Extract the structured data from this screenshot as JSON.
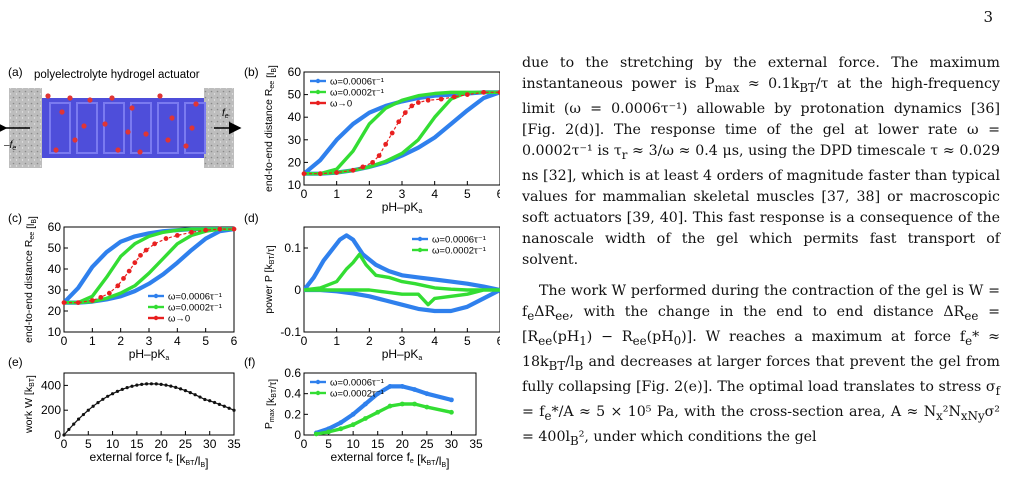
{
  "page_number": "3",
  "panels": {
    "a": {
      "label": "(a)",
      "title": "polyelectrolyte hydrogel actuator",
      "force_left": "–f",
      "force_right": "f",
      "force_sub": "e"
    },
    "b": {
      "label": "(b)"
    },
    "c": {
      "label": "(c)"
    },
    "d": {
      "label": "(d)"
    },
    "e": {
      "label": "(e)"
    },
    "f": {
      "label": "(f)"
    }
  },
  "chart_data": [
    {
      "id": "b",
      "type": "line",
      "ylabel": "end-to-end distance R_ee [l_B]",
      "xlabel": "pH–pK_a",
      "xlim": [
        0,
        6
      ],
      "ylim": [
        10,
        60
      ],
      "xticks": [
        0,
        1,
        2,
        3,
        4,
        5,
        6
      ],
      "yticks": [
        10,
        20,
        30,
        40,
        50,
        60
      ],
      "legend_position": "top-left",
      "series": [
        {
          "name": "ω=0.0006τ⁻¹",
          "color": "#2f80ed",
          "x": [
            0,
            0.5,
            1,
            1.5,
            2,
            2.5,
            3,
            3.5,
            4,
            4.5,
            5,
            5.5,
            6,
            6,
            5.5,
            5,
            4.5,
            4,
            3.5,
            3,
            2.5,
            2,
            1.5,
            1,
            0.5,
            0
          ],
          "y": [
            15,
            15,
            15.5,
            16.5,
            18,
            20,
            23,
            26.5,
            31,
            37,
            43,
            48.5,
            51,
            51,
            51,
            50.5,
            50,
            49.5,
            48.5,
            47,
            45,
            42,
            37,
            30,
            21,
            15
          ]
        },
        {
          "name": "ω=0.0002τ⁻¹",
          "color": "#33dd33",
          "x": [
            0,
            0.5,
            1,
            1.5,
            2,
            2.5,
            3,
            3.5,
            4,
            4.5,
            5,
            5.5,
            6,
            6,
            5.5,
            5,
            4.5,
            4,
            3.5,
            3,
            2.5,
            2,
            1.5,
            1,
            0.5,
            0
          ],
          "y": [
            15,
            15,
            15.5,
            16.5,
            18,
            20.5,
            24,
            30,
            40,
            48,
            51,
            51,
            51,
            51,
            51,
            51,
            51,
            50.5,
            49.5,
            47.5,
            44,
            37,
            25,
            17,
            15,
            15
          ]
        },
        {
          "name": "ω→0",
          "color": "#e82020",
          "dashed": true,
          "markers": true,
          "x": [
            0,
            0.5,
            1,
            1.5,
            1.8,
            2.1,
            2.3,
            2.5,
            2.7,
            2.9,
            3.1,
            3.3,
            3.5,
            3.8,
            4.2,
            4.6,
            5,
            5.5,
            6
          ],
          "y": [
            15,
            15,
            15.5,
            16.5,
            18,
            20,
            23,
            28,
            33,
            38,
            42,
            45,
            46.5,
            47.5,
            48,
            49,
            50,
            51,
            51
          ]
        }
      ]
    },
    {
      "id": "c",
      "type": "line",
      "ylabel": "end-to-end distance R_ee [l_B]",
      "xlabel": "pH–pK_a",
      "xlim": [
        0,
        6
      ],
      "ylim": [
        10,
        60
      ],
      "xticks": [
        0,
        1,
        2,
        3,
        4,
        5,
        6
      ],
      "yticks": [
        10,
        20,
        30,
        40,
        50,
        60
      ],
      "legend_position": "bottom-right",
      "series": [
        {
          "name": "ω=0.0006τ⁻¹",
          "color": "#2f80ed",
          "x": [
            0,
            0.5,
            1,
            1.5,
            2,
            2.5,
            3,
            3.5,
            4,
            4.5,
            5,
            5.5,
            6,
            6,
            5.5,
            5,
            4.5,
            4,
            3.5,
            3,
            2.5,
            2,
            1.5,
            1,
            0.5,
            0
          ],
          "y": [
            24,
            24,
            24.5,
            25.5,
            27,
            29.5,
            33,
            37.5,
            43,
            49,
            54.5,
            58,
            59,
            59,
            59,
            59,
            59,
            58.5,
            58,
            57,
            55.5,
            53,
            48,
            41,
            31,
            24
          ]
        },
        {
          "name": "ω=0.0002τ⁻¹",
          "color": "#33dd33",
          "x": [
            0,
            0.5,
            1,
            1.5,
            2,
            2.5,
            3,
            3.5,
            4,
            4.5,
            5,
            5.5,
            6,
            6,
            5.5,
            5,
            4.5,
            4,
            3.5,
            3,
            2.5,
            2,
            1.5,
            1,
            0.5,
            0
          ],
          "y": [
            24,
            24,
            24.5,
            26,
            28.5,
            32,
            38,
            45,
            52,
            56,
            58,
            59,
            59,
            59,
            59,
            59,
            59,
            58.5,
            57.5,
            55.5,
            52,
            46,
            36,
            27,
            24,
            24
          ]
        },
        {
          "name": "ω→0",
          "color": "#e82020",
          "dashed": true,
          "markers": true,
          "x": [
            0,
            0.5,
            1,
            1.3,
            1.6,
            1.9,
            2.1,
            2.3,
            2.5,
            2.7,
            2.9,
            3.2,
            3.6,
            4,
            4.5,
            5,
            5.5,
            6
          ],
          "y": [
            24,
            24,
            25,
            26.5,
            28.5,
            32,
            35.5,
            39,
            43,
            46.5,
            49,
            52,
            54.5,
            56,
            57.5,
            58.5,
            59,
            59
          ]
        }
      ]
    },
    {
      "id": "d",
      "type": "line",
      "ylabel": "power P [k_BT/τ]",
      "xlabel": "pH–pK_a",
      "xlim": [
        0,
        6
      ],
      "ylim": [
        -0.1,
        0.15
      ],
      "xticks": [
        0,
        1,
        2,
        3,
        4,
        5,
        6
      ],
      "yticks": [
        -0.1,
        0,
        0.1
      ],
      "legend_position": "top-right",
      "series": [
        {
          "name": "ω=0.0006τ⁻¹",
          "color": "#2f80ed",
          "x": [
            0,
            0.3,
            0.6,
            0.9,
            1.1,
            1.3,
            1.5,
            1.8,
            2.2,
            2.6,
            3,
            3.5,
            4,
            4.5,
            5,
            5.5,
            6,
            5.5,
            5,
            4.5,
            4,
            3.5,
            3,
            2.5,
            2,
            1.5,
            1,
            0.5,
            0
          ],
          "y": [
            0,
            0.03,
            0.07,
            0.1,
            0.12,
            0.13,
            0.12,
            0.085,
            0.06,
            0.045,
            0.035,
            0.03,
            0.025,
            0.02,
            0.015,
            0.008,
            0,
            -0.02,
            -0.04,
            -0.05,
            -0.05,
            -0.045,
            -0.035,
            -0.025,
            -0.015,
            -0.008,
            -0.003,
            0,
            0
          ]
        },
        {
          "name": "ω=0.0002τ⁻¹",
          "color": "#33dd33",
          "x": [
            0,
            0.5,
            1,
            1.3,
            1.5,
            1.7,
            1.9,
            2.2,
            2.6,
            3,
            3.4,
            3.7,
            4,
            4.5,
            5,
            5.5,
            6,
            5.5,
            5,
            4.5,
            4,
            3.8,
            3.5,
            3,
            2.5,
            2,
            1.5,
            1,
            0.5,
            0
          ],
          "y": [
            0,
            0.005,
            0.02,
            0.05,
            0.065,
            0.085,
            0.06,
            0.035,
            0.03,
            0.02,
            0.015,
            0.01,
            0.005,
            0.002,
            0,
            0,
            0,
            0,
            -0.01,
            -0.015,
            -0.02,
            -0.035,
            -0.01,
            -0.01,
            -0.005,
            0,
            0,
            0,
            0,
            0
          ]
        }
      ]
    },
    {
      "id": "e",
      "type": "line",
      "ylabel": "work W [k_BT]",
      "xlabel": "external force f_e [k_BT/l_B]",
      "xlim": [
        0,
        35
      ],
      "ylim": [
        0,
        500
      ],
      "xticks": [
        0,
        5,
        10,
        15,
        20,
        25,
        30,
        35
      ],
      "yticks": [
        0,
        200,
        400
      ],
      "legend_position": "none",
      "series": [
        {
          "name": "",
          "color": "#111111",
          "markers": true,
          "x": [
            0,
            1,
            2,
            3,
            4,
            5,
            6,
            7,
            8,
            9,
            10,
            11,
            12,
            13,
            14,
            15,
            16,
            17,
            18,
            19,
            20,
            21,
            22,
            23,
            24,
            25,
            26,
            27,
            28,
            29,
            30,
            31,
            32,
            33,
            34,
            35
          ],
          "y": [
            0,
            45,
            88,
            128,
            165,
            200,
            232,
            261,
            288,
            312,
            333,
            352,
            368,
            382,
            393,
            402,
            408,
            412,
            413,
            412,
            408,
            402,
            394,
            384,
            372,
            358,
            342,
            325,
            306,
            286,
            276,
            262,
            247,
            232,
            216,
            200
          ]
        }
      ]
    },
    {
      "id": "f",
      "type": "line",
      "ylabel": "P_max [k_BT/τ]",
      "xlabel": "external force f_e [k_BT/l_B]",
      "xlim": [
        0,
        35
      ],
      "ylim": [
        0,
        0.6
      ],
      "xticks": [
        0,
        5,
        10,
        15,
        20,
        25,
        30,
        35
      ],
      "yticks": [
        0,
        0.2,
        0.4,
        0.6
      ],
      "legend_position": "top-left",
      "series": [
        {
          "name": "ω=0.0006τ⁻¹",
          "color": "#2f80ed",
          "markers": true,
          "x": [
            2.5,
            5,
            7.5,
            10,
            12.5,
            15,
            17.5,
            20,
            22.5,
            25,
            30
          ],
          "y": [
            0.02,
            0.06,
            0.12,
            0.2,
            0.3,
            0.4,
            0.47,
            0.47,
            0.44,
            0.4,
            0.34
          ]
        },
        {
          "name": "ω=0.0002τ⁻¹",
          "color": "#33dd33",
          "markers": true,
          "x": [
            2.5,
            5,
            7.5,
            10,
            12.5,
            15,
            17.5,
            20,
            22.5,
            25,
            30
          ],
          "y": [
            0.01,
            0.03,
            0.06,
            0.1,
            0.16,
            0.22,
            0.28,
            0.3,
            0.3,
            0.27,
            0.22
          ]
        }
      ]
    }
  ],
  "text": {
    "p1": "due to the stretching by the external force. The maximum instantaneous power is P_max ≈ 0.1k_BT/τ at the high-frequency limit (ω = 0.0006τ⁻¹) allowable by protonation dynamics [36] [Fig. 2(d)]. The response time of the gel at lower rate ω = 0.0002τ⁻¹ is τ_r ≈ 3/ω ≈ 0.4 μs, using the DPD timescale τ ≈ 0.029 ns [32], which is at least 4 orders of magnitude faster than typical values for mammalian skeletal muscles [37, 38] or macroscopic soft actuators [39, 40]. This fast response is a consequence of the nanoscale width of the gel which permits fast transport of solvent.",
    "p2": "The work W performed during the contraction of the gel is W = f_eΔR_ee, with the change in the end to end distance ΔR_ee = [R_ee(pH_1) − R_ee(pH_0)]. W reaches a maximum at force f_e* ≈ 18k_BT/l_B and decreases at larger forces that prevent the gel from fully collapsing [Fig. 2(e)]. The optimal load translates to stress σ_f = f_e*/A ≈ 5 × 10⁵ Pa, with the cross-section area, A ≈ N_x²N_xN_yσ² = 400l_B², under which conditions the gel"
  }
}
